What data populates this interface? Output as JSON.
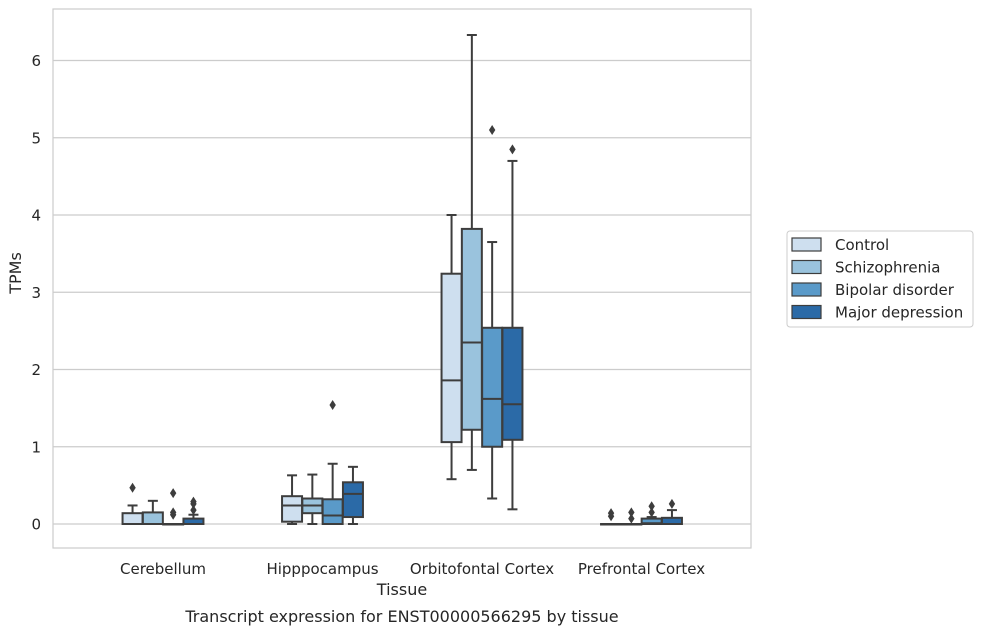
{
  "chart_data": {
    "type": "box",
    "caption": "Transcript expression for ENST00000566295 by tissue",
    "xlabel": "Tissue",
    "ylabel": "TPMs",
    "ylim": [
      -0.3,
      6.6
    ],
    "yticks": [
      0,
      1,
      2,
      3,
      4,
      5,
      6
    ],
    "grid": "horizontal",
    "legend_position": "right",
    "categories": [
      "Cerebellum",
      "Hipppocampus",
      "Orbitofontal Cortex",
      "Prefrontal Cortex"
    ],
    "series": [
      {
        "name": "Control",
        "color": "#cedfef",
        "boxes": [
          {
            "min": 0,
            "q1": 0,
            "median": 0,
            "q3": 0.14,
            "max": 0.24,
            "outliers": [
              0.47
            ]
          },
          {
            "min": 0,
            "q1": 0.03,
            "median": 0.24,
            "q3": 0.36,
            "max": 0.63,
            "outliers": []
          },
          {
            "min": 0.58,
            "q1": 1.06,
            "median": 1.86,
            "q3": 3.24,
            "max": 4.0,
            "outliers": []
          },
          {
            "min": 0,
            "q1": 0,
            "median": 0,
            "q3": 0,
            "max": 0,
            "outliers": [
              0.1,
              0.14
            ]
          }
        ]
      },
      {
        "name": "Schizophrenia",
        "color": "#9ac3dd",
        "boxes": [
          {
            "min": 0,
            "q1": 0,
            "median": 0,
            "q3": 0.15,
            "max": 0.3,
            "outliers": []
          },
          {
            "min": 0,
            "q1": 0.14,
            "median": 0.24,
            "q3": 0.33,
            "max": 0.64,
            "outliers": []
          },
          {
            "min": 0.7,
            "q1": 1.22,
            "median": 2.35,
            "q3": 3.82,
            "max": 6.33,
            "outliers": []
          },
          {
            "min": 0,
            "q1": 0,
            "median": 0,
            "q3": 0,
            "max": 0,
            "outliers": [
              0.07,
              0.15
            ]
          }
        ]
      },
      {
        "name": "Bipolar disorder",
        "color": "#5a9ac9",
        "boxes": [
          {
            "min": 0,
            "q1": 0,
            "median": 0,
            "q3": 0,
            "max": 0,
            "outliers": [
              0.12,
              0.15,
              0.4
            ]
          },
          {
            "min": 0,
            "q1": 0,
            "median": 0.11,
            "q3": 0.32,
            "max": 0.78,
            "outliers": [
              1.54
            ]
          },
          {
            "min": 0.33,
            "q1": 1.0,
            "median": 1.62,
            "q3": 2.54,
            "max": 3.65,
            "outliers": [
              5.1
            ]
          },
          {
            "min": 0,
            "q1": 0,
            "median": 0.01,
            "q3": 0.07,
            "max": 0.09,
            "outliers": [
              0.15,
              0.23
            ]
          }
        ]
      },
      {
        "name": "Major depression",
        "color": "#2b6aa7",
        "boxes": [
          {
            "min": 0,
            "q1": 0,
            "median": 0,
            "q3": 0.07,
            "max": 0.12,
            "outliers": [
              0.18,
              0.26,
              0.29
            ]
          },
          {
            "min": 0,
            "q1": 0.09,
            "median": 0.39,
            "q3": 0.54,
            "max": 0.74,
            "outliers": []
          },
          {
            "min": 0.19,
            "q1": 1.09,
            "median": 1.55,
            "q3": 2.54,
            "max": 4.7,
            "outliers": [
              4.85
            ]
          },
          {
            "min": 0,
            "q1": 0,
            "median": 0,
            "q3": 0.08,
            "max": 0.18,
            "outliers": [
              0.26
            ]
          }
        ]
      }
    ]
  }
}
